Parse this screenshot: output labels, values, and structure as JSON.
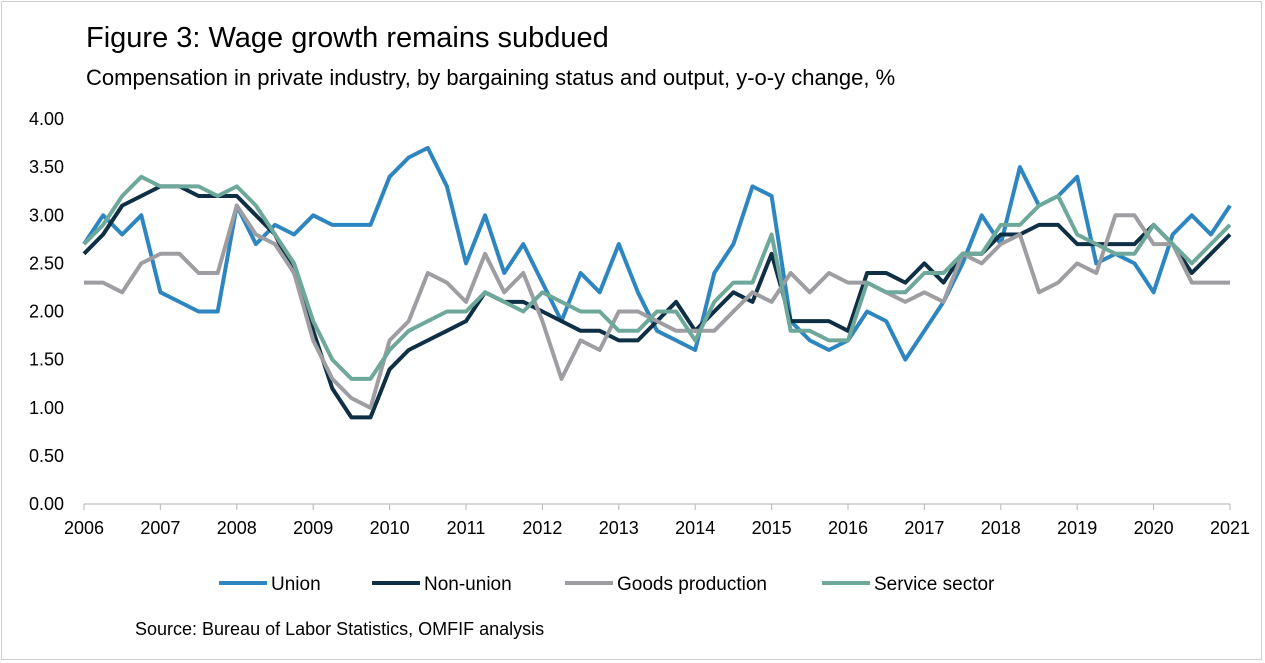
{
  "title": "Figure 3: Wage growth remains subdued",
  "subtitle": "Compensation in private industry, by bargaining status and output, y-o-y change, %",
  "source": "Source: Bureau of Labor Statistics, OMFIF analysis",
  "chart_data": {
    "type": "line",
    "title": "Figure 3: Wage growth remains subdued",
    "subtitle": "Compensation in private industry, by bargaining status and output, y-o-y change, %",
    "xlabel": "",
    "ylabel": "",
    "x_start": 2006,
    "x_step": 0.25,
    "xlim": [
      2006,
      2021
    ],
    "ylim": [
      0,
      4
    ],
    "grid": false,
    "legend_position": "bottom",
    "x_ticks": [
      "2006",
      "2007",
      "2008",
      "2009",
      "2010",
      "2011",
      "2012",
      "2013",
      "2014",
      "2015",
      "2016",
      "2017",
      "2018",
      "2019",
      "2020",
      "2021"
    ],
    "y_ticks": [
      "0.00",
      "0.50",
      "1.00",
      "1.50",
      "2.00",
      "2.50",
      "3.00",
      "3.50",
      "4.00"
    ],
    "series": [
      {
        "name": "Union",
        "color": "#2e86c1",
        "values": [
          2.7,
          3.0,
          2.8,
          3.0,
          2.2,
          2.1,
          2.0,
          2.0,
          3.1,
          2.7,
          2.9,
          2.8,
          3.0,
          2.9,
          2.9,
          2.9,
          3.4,
          3.6,
          3.7,
          3.3,
          2.5,
          3.0,
          2.4,
          2.7,
          2.3,
          1.9,
          2.4,
          2.2,
          2.7,
          2.2,
          1.8,
          1.7,
          1.6,
          2.4,
          2.7,
          3.3,
          3.2,
          1.9,
          1.7,
          1.6,
          1.7,
          2.0,
          1.9,
          1.5,
          1.8,
          2.1,
          2.5,
          3.0,
          2.7,
          3.5,
          3.1,
          3.2,
          3.4,
          2.5,
          2.6,
          2.5,
          2.2,
          2.8,
          3.0,
          2.8,
          3.1
        ]
      },
      {
        "name": "Non-union",
        "color": "#0e2f44",
        "values": [
          2.6,
          2.8,
          3.1,
          3.2,
          3.3,
          3.3,
          3.2,
          3.2,
          3.2,
          3.0,
          2.8,
          2.4,
          1.8,
          1.2,
          0.9,
          0.9,
          1.4,
          1.6,
          1.7,
          1.8,
          1.9,
          2.2,
          2.1,
          2.1,
          2.0,
          1.9,
          1.8,
          1.8,
          1.7,
          1.7,
          1.9,
          2.1,
          1.8,
          2.0,
          2.2,
          2.1,
          2.6,
          1.9,
          1.9,
          1.9,
          1.8,
          2.4,
          2.4,
          2.3,
          2.5,
          2.3,
          2.6,
          2.6,
          2.8,
          2.8,
          2.9,
          2.9,
          2.7,
          2.7,
          2.7,
          2.7,
          2.9,
          2.7,
          2.4,
          2.6,
          2.8
        ]
      },
      {
        "name": "Goods production",
        "color": "#9e9ea2",
        "values": [
          2.3,
          2.3,
          2.2,
          2.5,
          2.6,
          2.6,
          2.4,
          2.4,
          3.1,
          2.8,
          2.7,
          2.4,
          1.7,
          1.3,
          1.1,
          1.0,
          1.7,
          1.9,
          2.4,
          2.3,
          2.1,
          2.6,
          2.2,
          2.4,
          1.9,
          1.3,
          1.7,
          1.6,
          2.0,
          2.0,
          1.9,
          1.8,
          1.8,
          1.8,
          2.0,
          2.2,
          2.1,
          2.4,
          2.2,
          2.4,
          2.3,
          2.3,
          2.2,
          2.1,
          2.2,
          2.1,
          2.6,
          2.5,
          2.7,
          2.8,
          2.2,
          2.3,
          2.5,
          2.4,
          3.0,
          3.0,
          2.7,
          2.7,
          2.3,
          2.3,
          2.3
        ]
      },
      {
        "name": "Service sector",
        "color": "#6ea89a",
        "values": [
          2.7,
          2.9,
          3.2,
          3.4,
          3.3,
          3.3,
          3.3,
          3.2,
          3.3,
          3.1,
          2.8,
          2.5,
          1.9,
          1.5,
          1.3,
          1.3,
          1.6,
          1.8,
          1.9,
          2.0,
          2.0,
          2.2,
          2.1,
          2.0,
          2.2,
          2.1,
          2.0,
          2.0,
          1.8,
          1.8,
          2.0,
          2.0,
          1.7,
          2.1,
          2.3,
          2.3,
          2.8,
          1.8,
          1.8,
          1.7,
          1.7,
          2.3,
          2.2,
          2.2,
          2.4,
          2.4,
          2.6,
          2.6,
          2.9,
          2.9,
          3.1,
          3.2,
          2.8,
          2.7,
          2.6,
          2.6,
          2.9,
          2.7,
          2.5,
          2.7,
          2.9
        ]
      }
    ]
  }
}
